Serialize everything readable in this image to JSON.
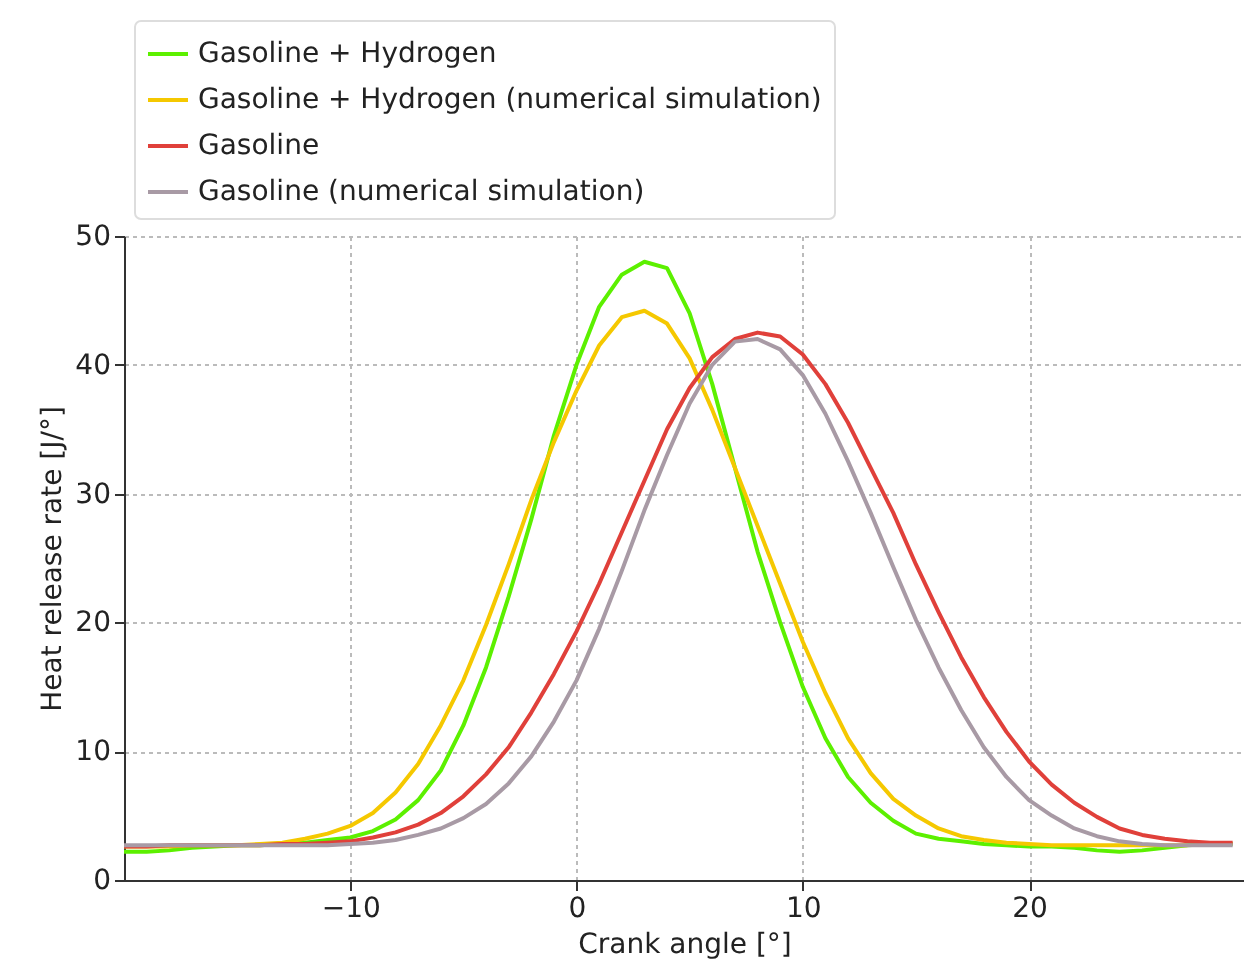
{
  "chart_data": {
    "type": "line",
    "xlabel": "Crank angle [°]",
    "ylabel": "Heat release rate [J/°]",
    "x": [
      -20,
      -19,
      -18,
      -17,
      -16,
      -15,
      -14,
      -13,
      -12,
      -11,
      -10,
      -9,
      -8,
      -7,
      -6,
      -5,
      -4,
      -3,
      -2,
      -1,
      0,
      1,
      2,
      3,
      4,
      5,
      6,
      7,
      8,
      9,
      10,
      11,
      12,
      13,
      14,
      15,
      16,
      17,
      18,
      19,
      20,
      21,
      22,
      23,
      24,
      25,
      26,
      27,
      28,
      29
    ],
    "series": [
      {
        "name": "Gasoline + Hydrogen",
        "color": "#5cf000",
        "values": [
          2.2,
          2.2,
          2.3,
          2.5,
          2.6,
          2.7,
          2.7,
          2.8,
          2.9,
          3.1,
          3.3,
          3.8,
          4.7,
          6.2,
          8.5,
          12,
          16.5,
          22,
          28,
          34.5,
          40,
          44.5,
          47,
          48,
          47.5,
          44,
          38.5,
          32,
          25.5,
          20,
          15,
          11,
          8,
          6,
          4.6,
          3.6,
          3.2,
          3,
          2.8,
          2.7,
          2.6,
          2.6,
          2.5,
          2.3,
          2.2,
          2.3,
          2.5,
          2.7,
          2.8,
          2.8
        ]
      },
      {
        "name": "Gasoline + Hydrogen (numerical simulation)",
        "color": "#f5c800",
        "values": [
          2.6,
          2.6,
          2.6,
          2.7,
          2.7,
          2.7,
          2.8,
          2.9,
          3.2,
          3.6,
          4.2,
          5.2,
          6.8,
          9,
          12,
          15.5,
          19.8,
          24.5,
          29.5,
          34,
          38,
          41.5,
          43.7,
          44.2,
          43.2,
          40.5,
          36.5,
          32,
          27.5,
          23,
          18.5,
          14.5,
          11,
          8.3,
          6.3,
          5,
          4,
          3.4,
          3.1,
          2.9,
          2.8,
          2.7,
          2.7,
          2.7,
          2.7,
          2.7,
          2.7,
          2.7,
          null,
          null
        ]
      },
      {
        "name": "Gasoline",
        "color": "#e0403a",
        "values": [
          2.6,
          2.6,
          2.7,
          2.7,
          2.7,
          2.7,
          2.7,
          2.8,
          2.8,
          2.9,
          3,
          3.3,
          3.7,
          4.3,
          5.2,
          6.5,
          8.2,
          10.3,
          13,
          16,
          19.3,
          23,
          27,
          31,
          35,
          38.2,
          40.6,
          42,
          42.5,
          42.2,
          40.8,
          38.5,
          35.5,
          32,
          28.5,
          24.5,
          20.8,
          17.3,
          14.2,
          11.5,
          9.2,
          7.4,
          6,
          4.9,
          4,
          3.5,
          3.2,
          3,
          2.9,
          2.9
        ]
      },
      {
        "name": "Gasoline (numerical simulation)",
        "color": "#a89aa5",
        "values": [
          2.7,
          2.7,
          2.7,
          2.7,
          2.7,
          2.7,
          2.7,
          2.7,
          2.7,
          2.7,
          2.8,
          2.9,
          3.1,
          3.5,
          4,
          4.8,
          5.9,
          7.5,
          9.6,
          12.3,
          15.5,
          19.5,
          24,
          28.7,
          33,
          37,
          40,
          41.8,
          42,
          41.2,
          39.2,
          36.2,
          32.5,
          28.5,
          24.3,
          20.2,
          16.5,
          13.2,
          10.3,
          8,
          6.2,
          5,
          4,
          3.4,
          3,
          2.8,
          2.7,
          2.7,
          2.7,
          2.7
        ]
      }
    ],
    "xlim": [
      -20,
      29.5
    ],
    "xticks": [
      -10,
      0,
      10,
      20
    ],
    "ylim": [
      0,
      50
    ],
    "yticks": [
      0,
      10,
      20,
      30,
      40,
      50
    ],
    "grid": true,
    "legend": "top left",
    "marker": "none",
    "line_style": "solid"
  }
}
